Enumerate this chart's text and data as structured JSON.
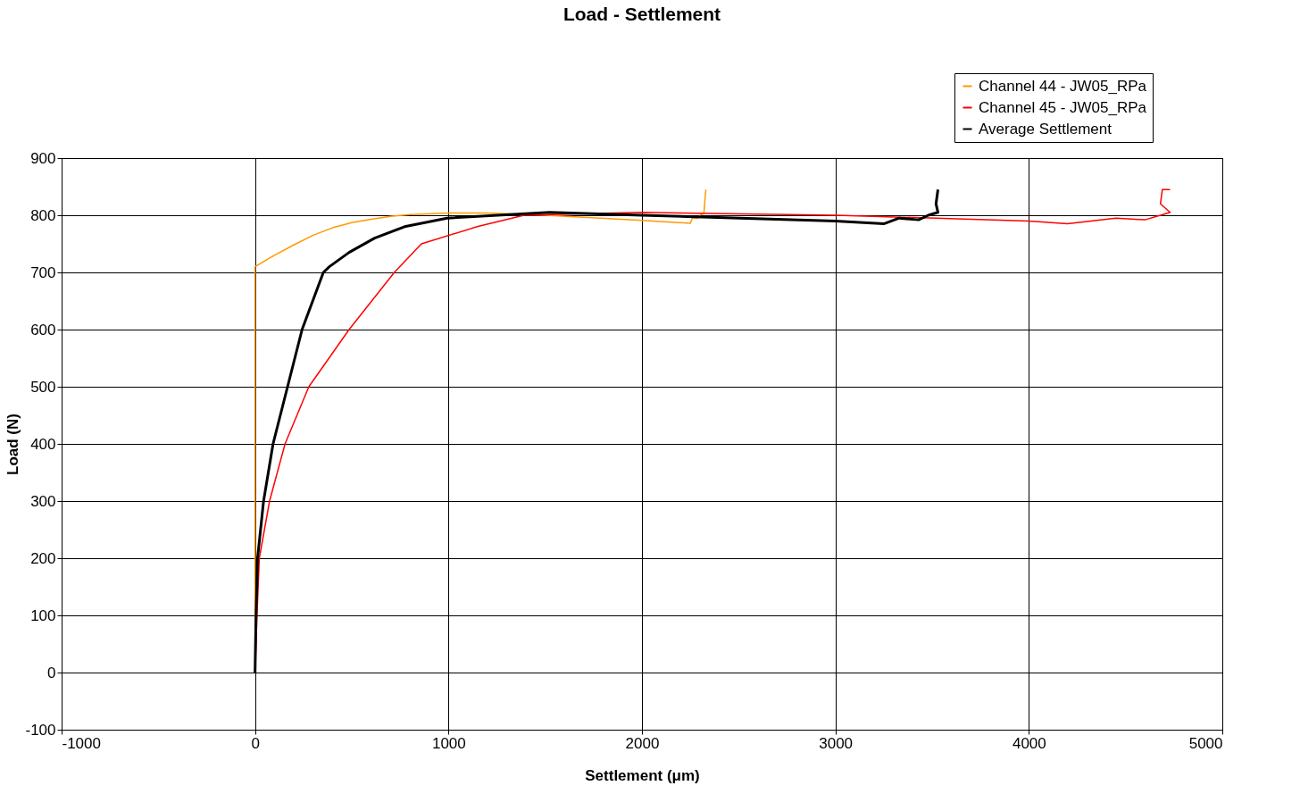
{
  "chart_data": {
    "type": "line",
    "title": "Load - Settlement",
    "xlabel": "Settlement (μm)",
    "ylabel": "Load (N)",
    "xlim": [
      -1000,
      5000
    ],
    "xticks": [
      -1000,
      0,
      1000,
      2000,
      3000,
      4000,
      5000
    ],
    "ylim": [
      -100,
      900
    ],
    "yticks": [
      -100,
      0,
      100,
      200,
      300,
      400,
      500,
      600,
      700,
      800,
      900
    ],
    "grid": true,
    "legend": "top right",
    "marker": "none",
    "line_style": "solid",
    "series": [
      {
        "name": "Channel 44 - JW05_RPa",
        "color": "#ff9900",
        "x": [
          0,
          0,
          50,
          100,
          200,
          300,
          400,
          500,
          600,
          700,
          800,
          1000,
          1200,
          1500,
          2000,
          2250,
          2260,
          2290,
          2300,
          2320,
          2330
        ],
        "values": [
          0,
          710,
          720,
          730,
          748,
          765,
          778,
          787,
          793,
          798,
          801,
          804,
          804,
          800,
          791,
          786,
          795,
          795,
          800,
          803,
          845
        ]
      },
      {
        "name": "Channel 45 - JW05_RPa",
        "color": "#ff0000",
        "x": [
          0,
          10,
          22,
          75,
          155,
          278,
          486,
          720,
          860,
          1148,
          1390,
          2000,
          3000,
          4000,
          4200,
          4450,
          4600,
          4680,
          4730,
          4680,
          4690,
          4730
        ],
        "values": [
          0,
          100,
          200,
          300,
          400,
          500,
          600,
          700,
          750,
          780,
          800,
          805,
          800,
          790,
          785,
          795,
          792,
          800,
          805,
          820,
          845,
          845
        ]
      },
      {
        "name": "Average Settlement",
        "color": "#000000",
        "x": [
          0,
          5,
          13,
          44,
          93,
          168,
          243,
          353,
          384,
          486,
          618,
          773,
          993,
          1523,
          2000,
          3000,
          3250,
          3330,
          3430,
          3480,
          3530,
          3520,
          3530
        ],
        "values": [
          0,
          100,
          200,
          300,
          400,
          500,
          600,
          700,
          710,
          735,
          760,
          780,
          795,
          805,
          800,
          790,
          785,
          795,
          792,
          800,
          805,
          820,
          845
        ]
      }
    ]
  }
}
